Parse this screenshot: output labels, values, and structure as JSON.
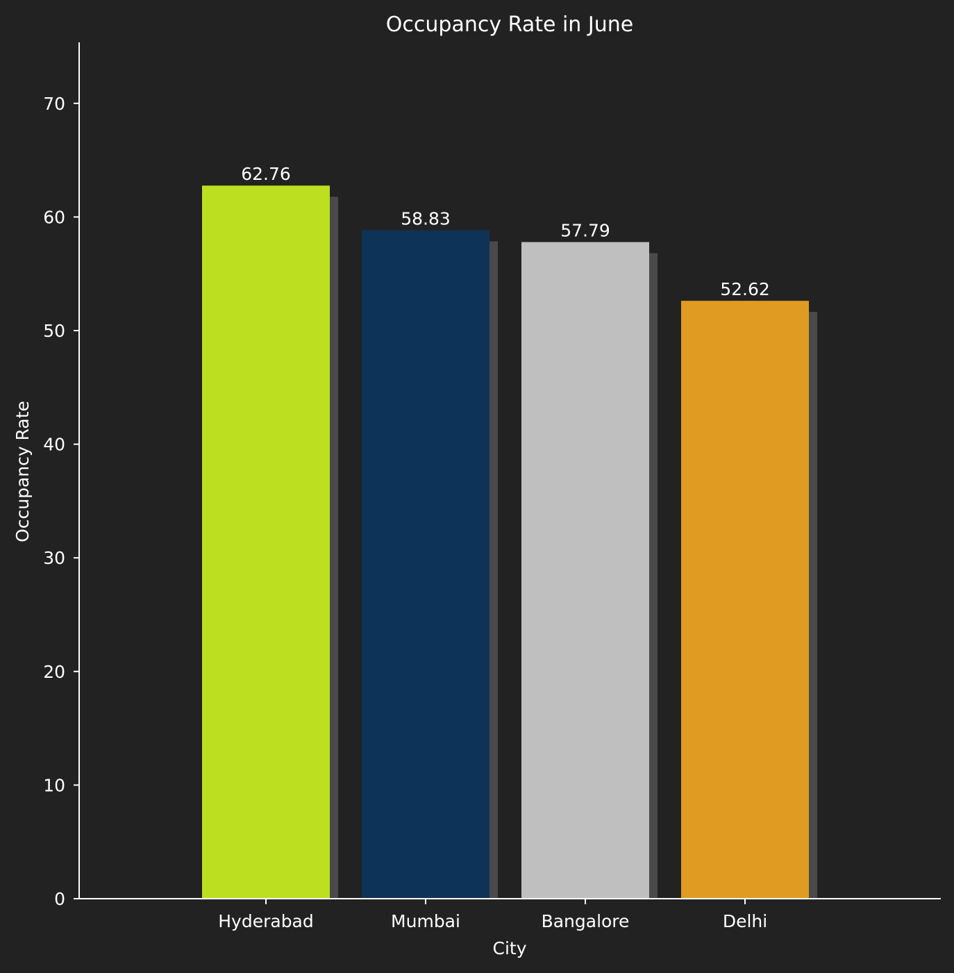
{
  "chart_data": {
    "type": "bar",
    "title": "Occupancy Rate in June",
    "xlabel": "City",
    "ylabel": "Occupancy Rate",
    "categories": [
      "Hyderabad",
      "Mumbai",
      "Bangalore",
      "Delhi"
    ],
    "values": [
      62.76,
      58.83,
      57.79,
      52.62
    ],
    "value_labels": [
      "62.76",
      "58.83",
      "57.79",
      "52.62"
    ],
    "colors": [
      "#bce01f",
      "#0e3358",
      "#bfbfbf",
      "#df9b22"
    ],
    "shadow_color": "#4a4a4a",
    "background_color": "#222222",
    "ylim": [
      0,
      75.5
    ],
    "yticks": [
      0,
      10,
      20,
      30,
      40,
      50,
      60,
      70
    ],
    "ytick_labels": [
      "0",
      "10",
      "20",
      "30",
      "40",
      "50",
      "60",
      "70"
    ],
    "grid": false,
    "legend": "none"
  }
}
